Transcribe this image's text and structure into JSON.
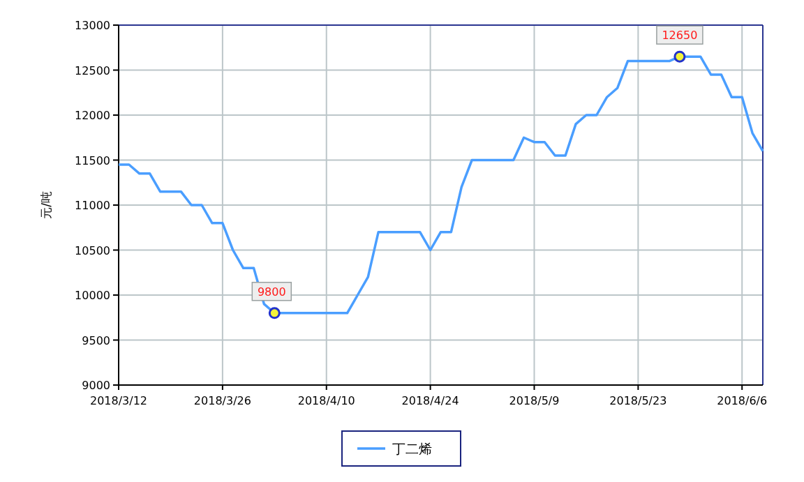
{
  "chart_data": {
    "type": "line",
    "ylabel": "元/吨",
    "categories": [
      "2018/3/12",
      null,
      null,
      null,
      null,
      null,
      null,
      null,
      null,
      null,
      "2018/3/26",
      null,
      null,
      null,
      null,
      null,
      null,
      null,
      null,
      null,
      "2018/4/10",
      null,
      null,
      null,
      null,
      null,
      null,
      null,
      null,
      null,
      "2018/4/24",
      null,
      null,
      null,
      null,
      null,
      null,
      null,
      null,
      null,
      "2018/5/9",
      null,
      null,
      null,
      null,
      null,
      null,
      null,
      null,
      null,
      "2018/5/23",
      null,
      null,
      null,
      null,
      null,
      null,
      null,
      null,
      null,
      "2018/6/6",
      null,
      null
    ],
    "series": [
      {
        "name": "丁二烯",
        "color": "#4a9eff",
        "values": [
          11450,
          11450,
          11350,
          11350,
          11150,
          11150,
          11150,
          11000,
          11000,
          10800,
          10800,
          10500,
          10300,
          10300,
          9900,
          9800,
          9800,
          9800,
          9800,
          9800,
          9800,
          9800,
          9800,
          10000,
          10200,
          10700,
          10700,
          10700,
          10700,
          10700,
          10500,
          10700,
          10700,
          11200,
          11500,
          11500,
          11500,
          11500,
          11500,
          11750,
          11700,
          11700,
          11550,
          11550,
          11900,
          12000,
          12000,
          12200,
          12300,
          12600,
          12600,
          12600,
          12600,
          12600,
          12650,
          12650,
          12650,
          12450,
          12450,
          12200,
          12200,
          11800,
          11600
        ],
        "value_labels": [
          null,
          null,
          null,
          null,
          null,
          null,
          null,
          null,
          null,
          null,
          null,
          null,
          null,
          null,
          null,
          "9800",
          null,
          null,
          null,
          null,
          null,
          null,
          null,
          null,
          null,
          null,
          null,
          null,
          null,
          null,
          null,
          null,
          null,
          null,
          null,
          null,
          null,
          null,
          null,
          null,
          null,
          null,
          null,
          null,
          null,
          null,
          null,
          null,
          null,
          null,
          null,
          null,
          null,
          null,
          "12650",
          null,
          null,
          null,
          null,
          null,
          null,
          null,
          null
        ]
      }
    ],
    "ylim": [
      9000,
      13000
    ],
    "yticks": [
      9000,
      9500,
      10000,
      10500,
      11000,
      11500,
      12000,
      12500,
      13000
    ],
    "grid": true,
    "legend": "bottom",
    "marker": "none",
    "line_style": "solid"
  }
}
